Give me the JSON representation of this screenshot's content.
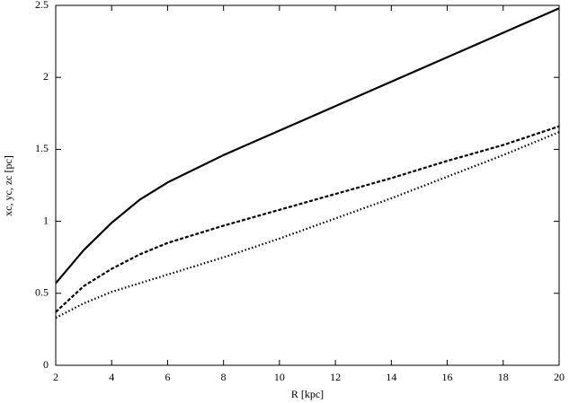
{
  "chart_data": {
    "type": "line",
    "xlabel": "R [kpc]",
    "ylabel": "xc, yc, zc [pc]",
    "x": [
      2,
      3,
      4,
      5,
      6,
      8,
      10,
      12,
      14,
      16,
      18,
      20
    ],
    "series": [
      {
        "color": "#000000",
        "style": "solid",
        "values": [
          0.57,
          0.8,
          0.99,
          1.15,
          1.27,
          1.46,
          1.63,
          1.8,
          1.97,
          2.14,
          2.31,
          2.48
        ]
      },
      {
        "color": "#000000",
        "style": "dashed",
        "values": [
          0.37,
          0.55,
          0.67,
          0.77,
          0.85,
          0.97,
          1.08,
          1.19,
          1.3,
          1.42,
          1.53,
          1.66
        ]
      },
      {
        "color": "#000000",
        "style": "dotted",
        "values": [
          0.33,
          0.43,
          0.51,
          0.57,
          0.63,
          0.75,
          0.88,
          1.02,
          1.16,
          1.31,
          1.46,
          1.62
        ]
      }
    ],
    "xlim": [
      2,
      20
    ],
    "xticks": [
      2,
      4,
      6,
      8,
      10,
      12,
      14,
      16,
      18,
      20
    ],
    "ylim": [
      0,
      2.5
    ],
    "yticks": [
      0,
      0.5,
      1,
      1.5,
      2,
      2.5
    ],
    "grid": false
  }
}
